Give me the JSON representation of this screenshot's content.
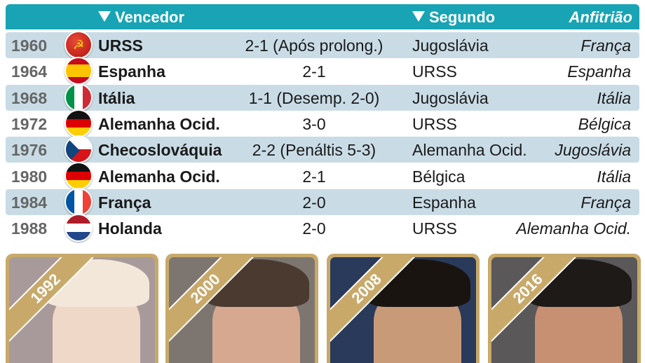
{
  "header": {
    "winner": "Vencedor",
    "second": "Segundo",
    "host": "Anfitrião"
  },
  "rows": [
    {
      "year": "1960",
      "flag": "ussr",
      "winner": "URSS",
      "score": "2-1 (Após prolong.)",
      "second": "Jugoslávia",
      "host": "França"
    },
    {
      "year": "1964",
      "flag": "spain",
      "winner": "Espanha",
      "score": "2-1",
      "second": "URSS",
      "host": "Espanha"
    },
    {
      "year": "1968",
      "flag": "italy",
      "winner": "Itália",
      "score": "1-1 (Desemp. 2-0)",
      "second": "Jugoslávia",
      "host": "Itália"
    },
    {
      "year": "1972",
      "flag": "west-germany",
      "winner": "Alemanha Ocid.",
      "score": "3-0",
      "second": "URSS",
      "host": "Bélgica"
    },
    {
      "year": "1976",
      "flag": "czechoslovakia",
      "winner": "Checoslováquia",
      "score": "2-2 (Penáltis 5-3)",
      "second": "Alemanha Ocid.",
      "host": "Jugoslávia"
    },
    {
      "year": "1980",
      "flag": "west-germany",
      "winner": "Alemanha Ocid.",
      "score": "2-1",
      "second": "Bélgica",
      "host": "Itália"
    },
    {
      "year": "1984",
      "flag": "france",
      "winner": "França",
      "score": "2-0",
      "second": "Espanha",
      "host": "França"
    },
    {
      "year": "1988",
      "flag": "netherlands",
      "winner": "Holanda",
      "score": "2-0",
      "second": "URSS",
      "host": "Alemanha Ocid."
    }
  ],
  "photos": [
    {
      "year": "1992"
    },
    {
      "year": "2000"
    },
    {
      "year": "2008"
    },
    {
      "year": "2016"
    }
  ],
  "colors": {
    "header": "#18a4b4",
    "stripe": "#c9dce6",
    "gold": "#c8a96a"
  }
}
